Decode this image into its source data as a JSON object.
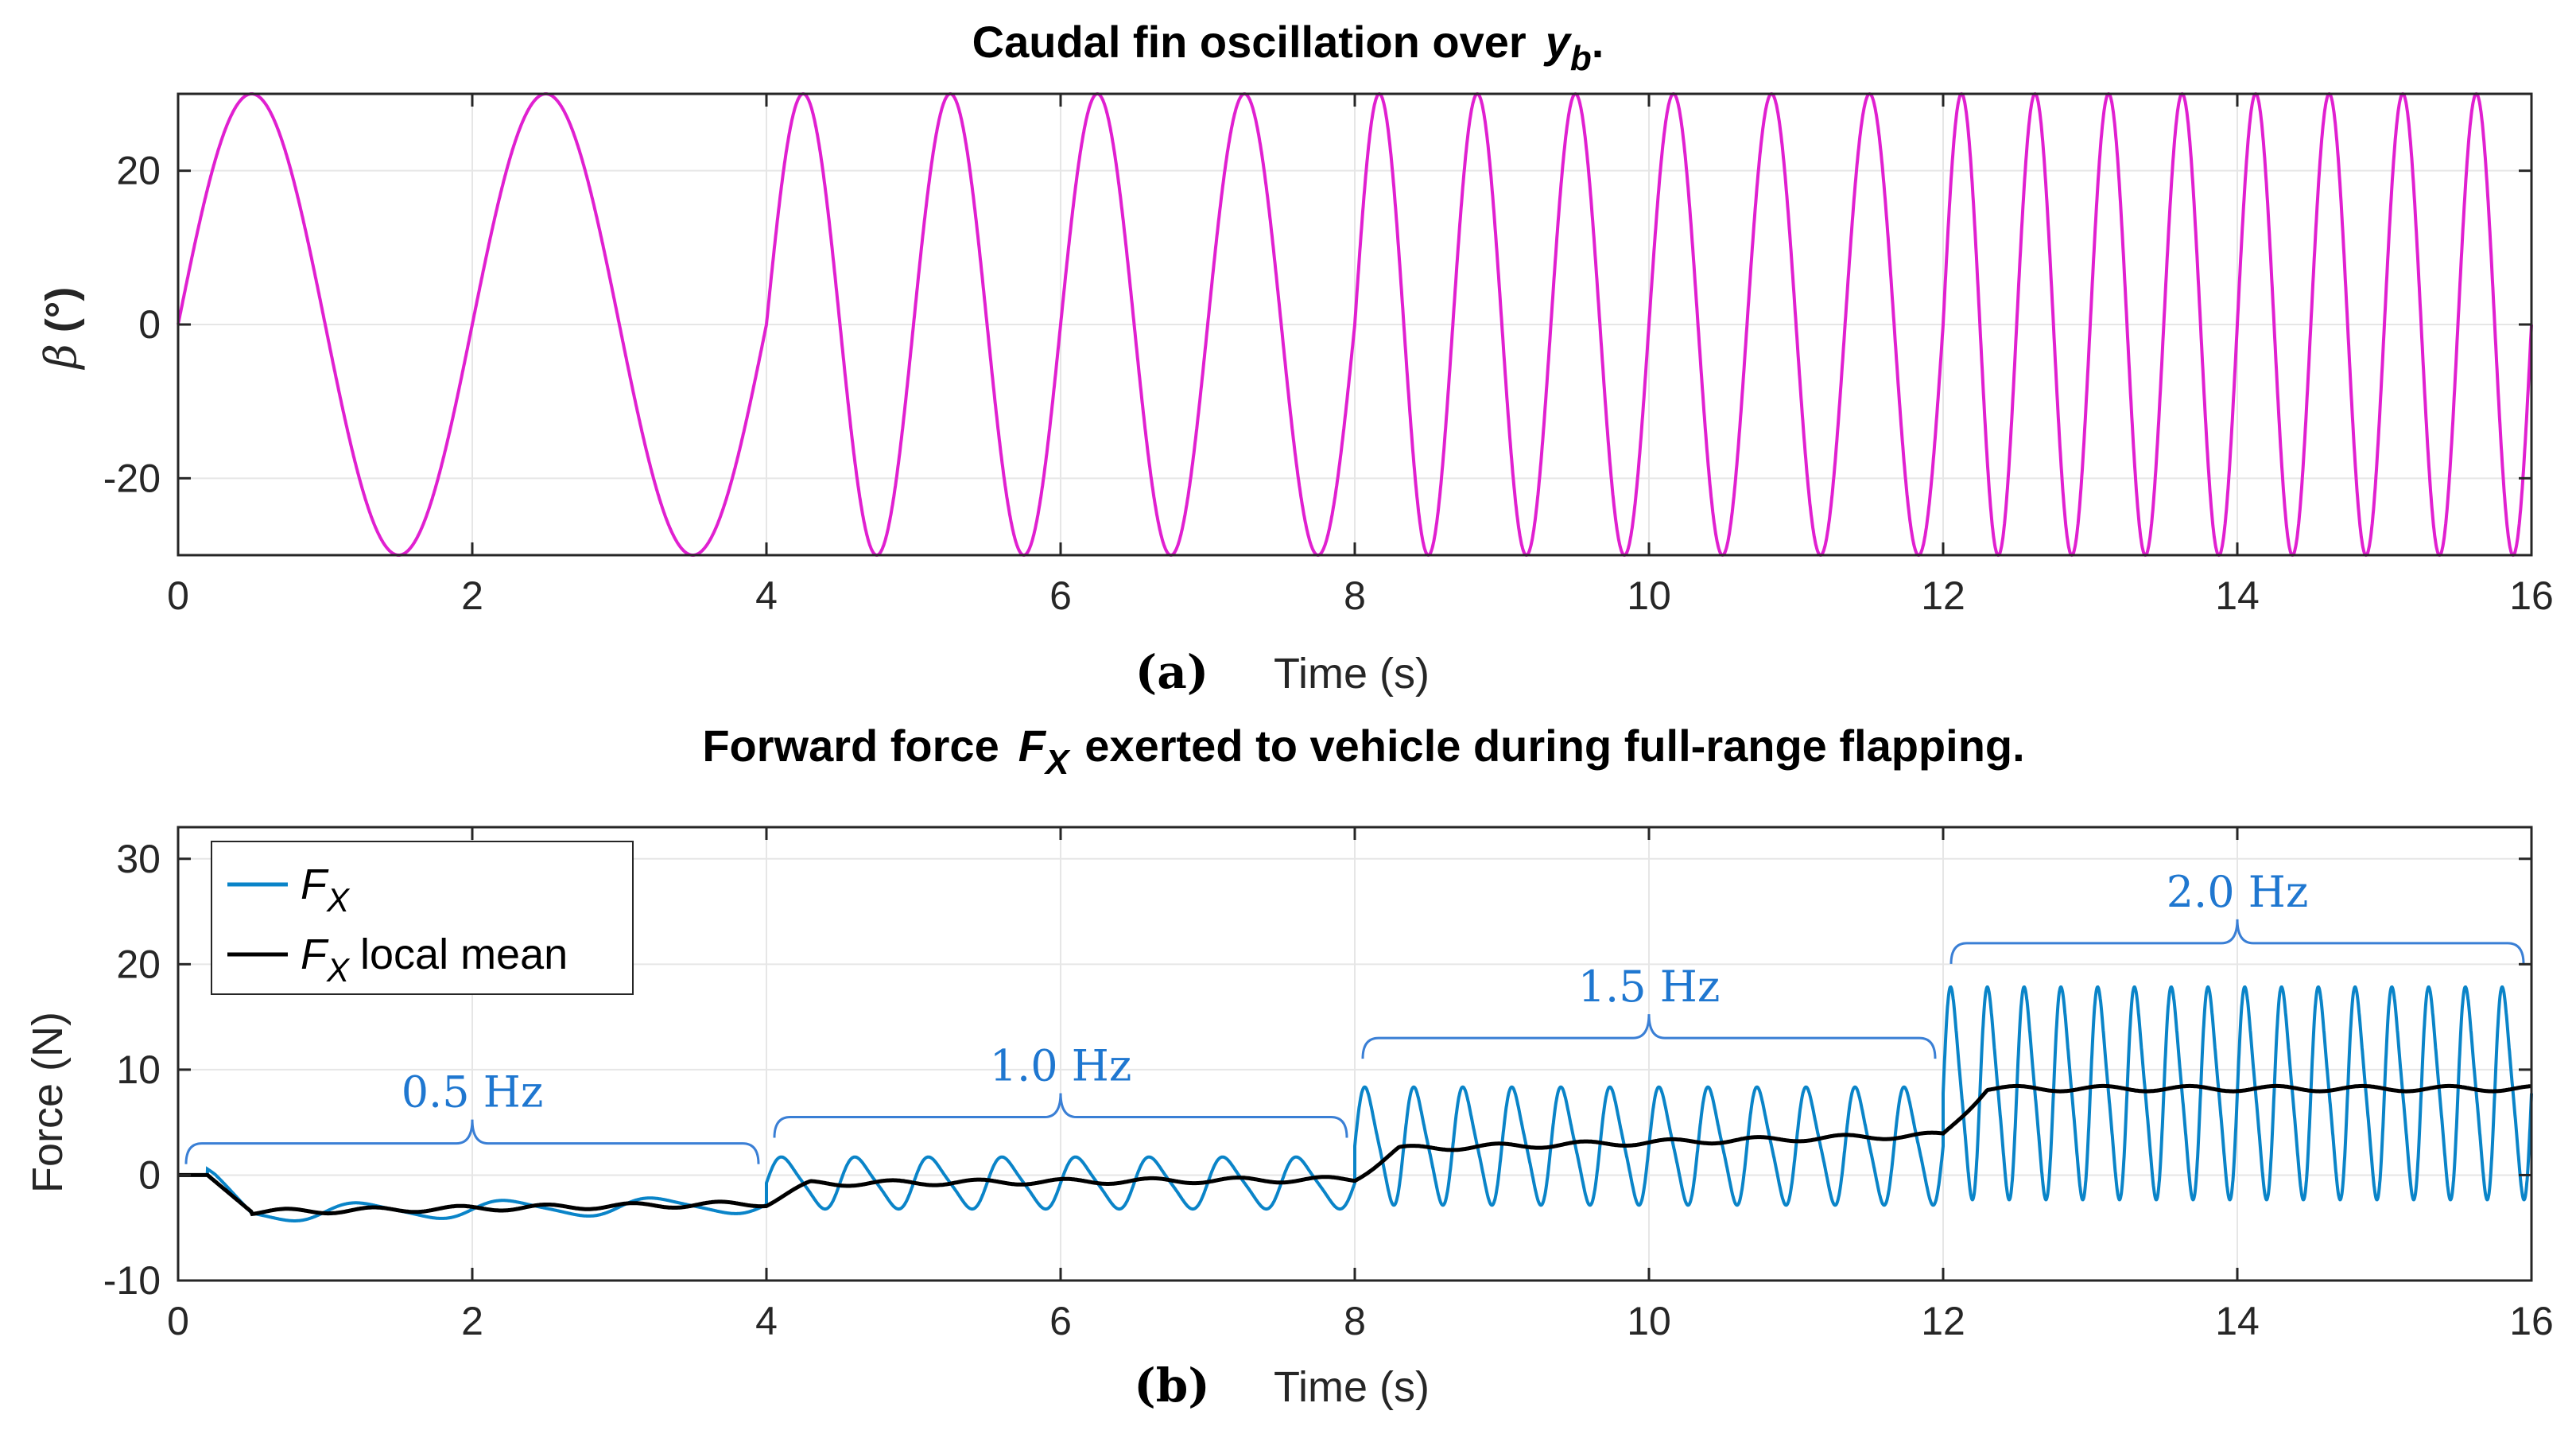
{
  "chart_data": [
    {
      "type": "line",
      "title_main": "Caudal fin oscillation over",
      "title_var": "y",
      "title_sub": "b",
      "title_end": ".",
      "panel_label": "(a)",
      "xlabel": "Time (s)",
      "ylabel_symbol": "β",
      "ylabel_unit": "(°)",
      "xlim": [
        0,
        16
      ],
      "ylim": [
        -30,
        30
      ],
      "xticks": [
        0,
        2,
        4,
        6,
        8,
        10,
        12,
        14,
        16
      ],
      "yticks": [
        -20,
        0,
        20
      ],
      "grid": true,
      "series": [
        {
          "name": "beta",
          "color": "#e020d0",
          "amplitude": 30,
          "segments": [
            {
              "t0": 0,
              "t1": 4,
              "frequency_hz": 0.5
            },
            {
              "t0": 4,
              "t1": 8,
              "frequency_hz": 1.0
            },
            {
              "t0": 8,
              "t1": 12,
              "frequency_hz": 1.5
            },
            {
              "t0": 12,
              "t1": 16,
              "frequency_hz": 2.0
            }
          ]
        }
      ]
    },
    {
      "type": "line",
      "title_main": "Forward force",
      "title_var": "F",
      "title_sub": "X",
      "title_end": "exerted to vehicle during full-range flapping.",
      "panel_label": "(b)",
      "xlabel": "Time (s)",
      "ylabel": "Force (N)",
      "xlim": [
        0,
        16
      ],
      "ylim": [
        -10,
        33
      ],
      "xticks": [
        0,
        2,
        4,
        6,
        8,
        10,
        12,
        14,
        16
      ],
      "yticks": [
        -10,
        0,
        10,
        20,
        30
      ],
      "grid": true,
      "legend_position": "top-left",
      "series": [
        {
          "name": "F",
          "name_sub": "X",
          "name_suffix": "",
          "color": "#0a84c8",
          "segments": [
            {
              "t0": 0,
              "t1": 4,
              "frequency_hz": 0.5,
              "mean": -2.7,
              "min": -3.7,
              "max": -1.9
            },
            {
              "t0": 4,
              "t1": 8,
              "frequency_hz": 1.0,
              "mean": -0.7,
              "min": -3.5,
              "max": 2.0
            },
            {
              "t0": 8,
              "t1": 12,
              "frequency_hz": 1.5,
              "mean": 3.0,
              "min": -3.5,
              "max": 9.0
            },
            {
              "t0": 12,
              "t1": 16,
              "frequency_hz": 2.0,
              "mean": 8.2,
              "min": -3.5,
              "max": 19.0
            }
          ]
        },
        {
          "name": "F",
          "name_sub": "X",
          "name_suffix": "local mean",
          "color": "#000000",
          "levels": [
            {
              "t": 0,
              "value": 0
            },
            {
              "t": 0.2,
              "value": 0
            },
            {
              "t": 0.5,
              "value": -3.5
            },
            {
              "t": 4,
              "value": -2.7
            },
            {
              "t": 4.3,
              "value": -0.8
            },
            {
              "t": 8,
              "value": -0.4
            },
            {
              "t": 8.3,
              "value": 2.5
            },
            {
              "t": 12,
              "value": 3.8
            },
            {
              "t": 12.3,
              "value": 8.2
            },
            {
              "t": 16,
              "value": 8.2
            }
          ]
        }
      ],
      "annotations": [
        {
          "text": "0.5 Hz",
          "t0": 0,
          "t1": 4,
          "y": 3
        },
        {
          "text": "1.0 Hz",
          "t0": 4,
          "t1": 8,
          "y": 5.5
        },
        {
          "text": "1.5 Hz",
          "t0": 8,
          "t1": 12,
          "y": 13
        },
        {
          "text": "2.0 Hz",
          "t0": 12,
          "t1": 16,
          "y": 22
        }
      ]
    }
  ]
}
